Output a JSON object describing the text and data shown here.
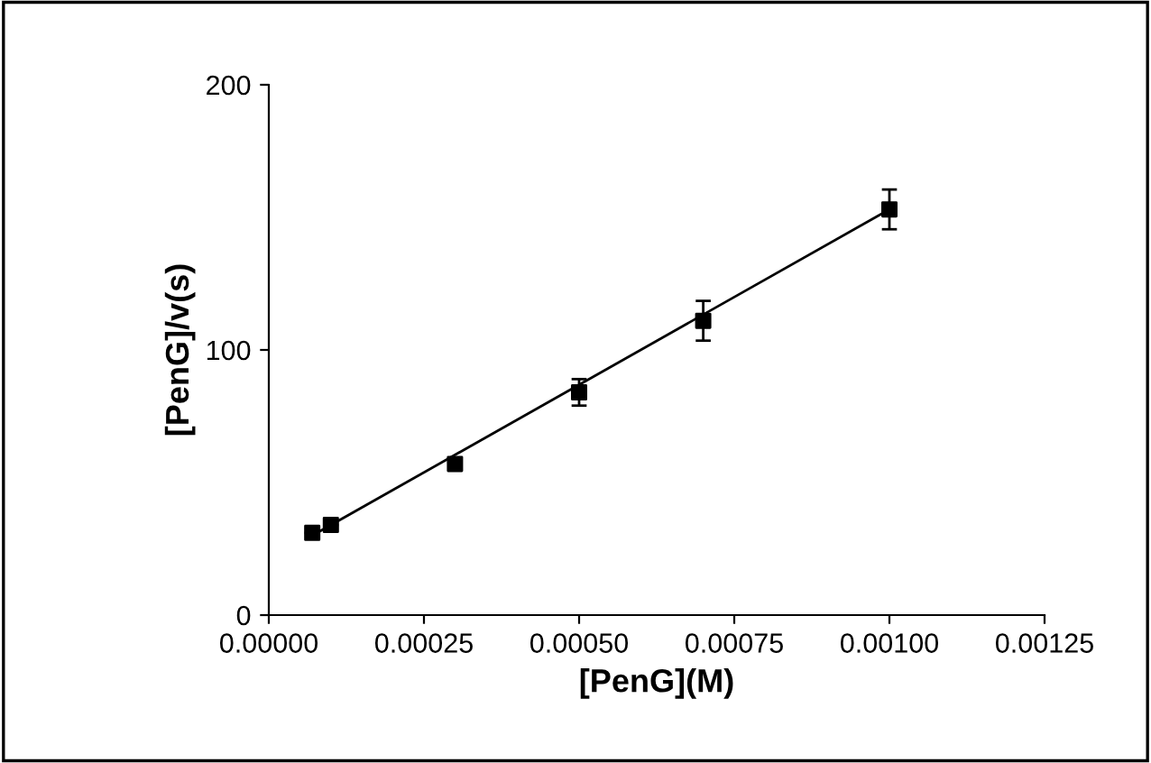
{
  "chart_data": {
    "type": "scatter",
    "xlabel": "[PenG](M)",
    "ylabel": "[PenG]/v(s)",
    "xlim": [
      0,
      0.00125
    ],
    "xticks": [
      {
        "value": 0,
        "label": "0.00000"
      },
      {
        "value": 0.00025,
        "label": "0.00025"
      },
      {
        "value": 0.0005,
        "label": "0.00050"
      },
      {
        "value": 0.00075,
        "label": "0.00075"
      },
      {
        "value": 0.001,
        "label": "0.00100"
      },
      {
        "value": 0.00125,
        "label": "0.00125"
      }
    ],
    "ylim": [
      0,
      200
    ],
    "yticks": [
      0,
      100,
      200
    ],
    "grid": false,
    "series": [
      {
        "marker": "square",
        "color": "#000000",
        "x": [
          7e-05,
          0.0001,
          0.0003,
          0.0005,
          0.0007,
          0.001
        ],
        "values": [
          31,
          34,
          57,
          84,
          111,
          153
        ],
        "errors": [
          null,
          null,
          1,
          5,
          7.5,
          7.5
        ]
      },
      {
        "type": "line",
        "marker": "none",
        "color": "#000000",
        "x": [
          7e-05,
          0.001
        ],
        "values": [
          30,
          153
        ]
      }
    ]
  }
}
